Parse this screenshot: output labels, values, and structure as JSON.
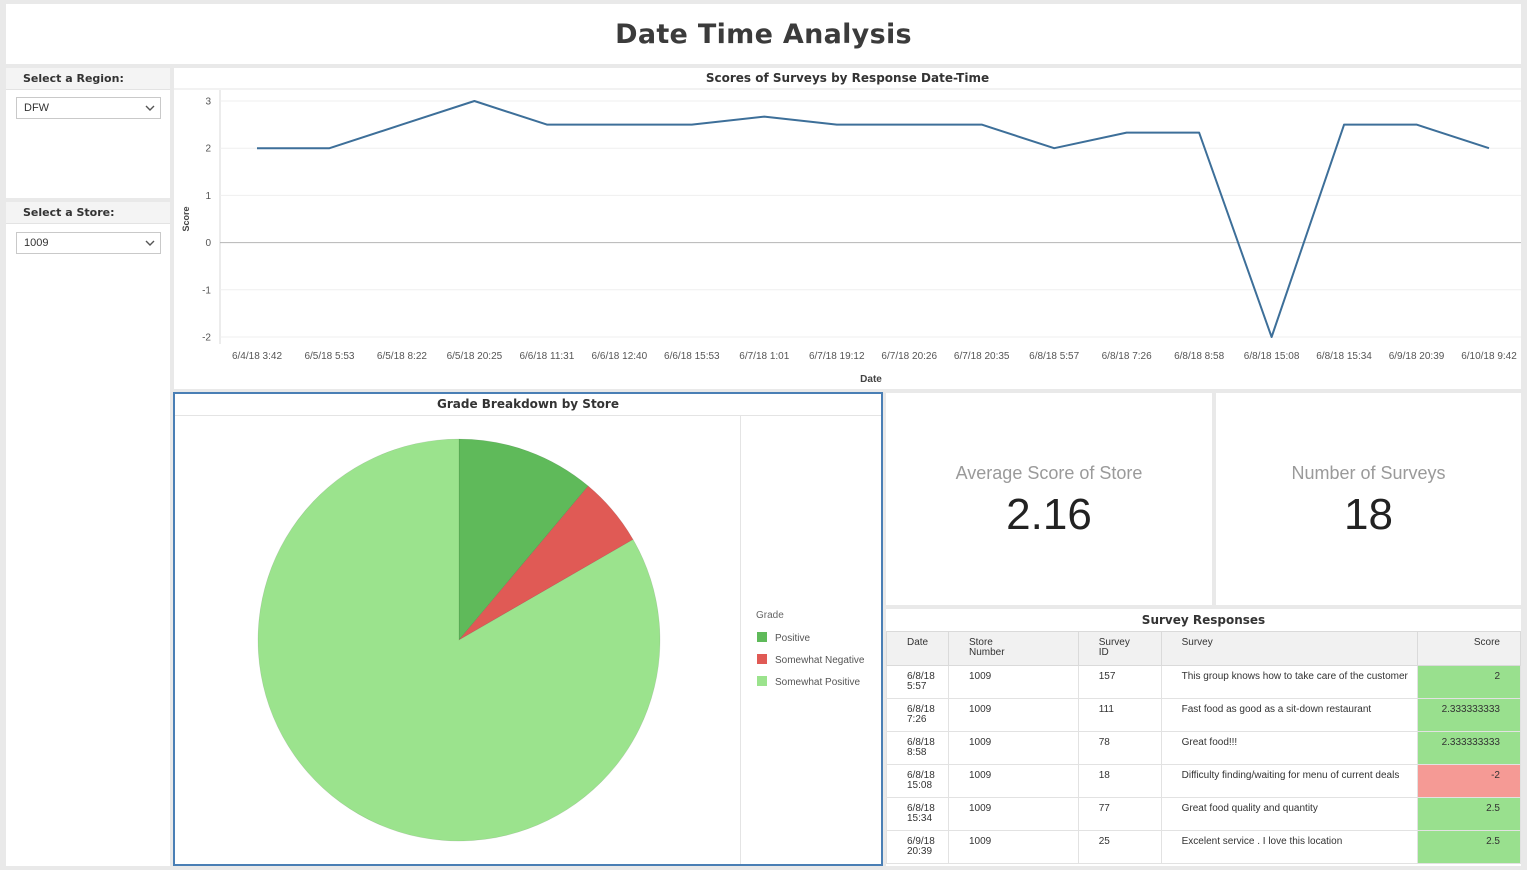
{
  "dashboard": {
    "title": "Date Time Analysis"
  },
  "filters": {
    "region": {
      "label": "Select a Region:",
      "value": "DFW"
    },
    "store": {
      "label": "Select a Store:",
      "value": "1009"
    }
  },
  "line_chart": {
    "title": "Scores of Surveys by Response Date-Time",
    "xlabel": "Date",
    "ylabel": "Score"
  },
  "pie_chart": {
    "title": "Grade Breakdown by Store"
  },
  "kpis": {
    "average": {
      "label": "Average Score of Store",
      "value": "2.16"
    },
    "count": {
      "label": "Number of Surveys",
      "value": "18"
    }
  },
  "table": {
    "title": "Survey Responses",
    "headers": [
      "Date",
      "Store\nNumber",
      "Survey\nID",
      "Survey",
      "Score"
    ],
    "rows": [
      {
        "date": "6/8/18\n5:57",
        "store": "1009",
        "id": "157",
        "survey": "This group knows how to take care of the customer",
        "score": "2"
      },
      {
        "date": "6/8/18\n7:26",
        "store": "1009",
        "id": "111",
        "survey": "Fast food as good as a sit-down restaurant",
        "score": "2.333333333"
      },
      {
        "date": "6/8/18\n8:58",
        "store": "1009",
        "id": "78",
        "survey": "Great food!!!",
        "score": "2.333333333"
      },
      {
        "date": "6/8/18\n15:08",
        "store": "1009",
        "id": "18",
        "survey": "Difficulty finding/waiting for menu of current deals",
        "score": "-2"
      },
      {
        "date": "6/8/18\n15:34",
        "store": "1009",
        "id": "77",
        "survey": "Great food quality and quantity",
        "score": "2.5"
      },
      {
        "date": "6/9/18\n20:39",
        "store": "1009",
        "id": "25",
        "survey": "Excelent service . I love this location",
        "score": "2.5"
      }
    ]
  },
  "colors": {
    "line": "#3d6f99",
    "positive": "#5fba5a",
    "somewhat_negative": "#e05a55",
    "somewhat_positive": "#9be38d",
    "score_positive_bg": "#99e08e",
    "score_negative_bg": "#f59a95"
  },
  "chart_data": [
    {
      "type": "line",
      "title": "Scores of Surveys by Response Date-Time",
      "xlabel": "Date",
      "ylabel": "Score",
      "ylim": [
        -2,
        3
      ],
      "yticks": [
        3,
        2,
        1,
        0,
        -1,
        -2
      ],
      "grid": true,
      "categories": [
        "6/4/18 3:42",
        "6/5/18 5:53",
        "6/5/18 8:22",
        "6/5/18 20:25",
        "6/6/18 11:31",
        "6/6/18 12:40",
        "6/6/18 15:53",
        "6/7/18 1:01",
        "6/7/18 19:12",
        "6/7/18 20:26",
        "6/7/18 20:35",
        "6/8/18 5:57",
        "6/8/18 7:26",
        "6/8/18 8:58",
        "6/8/18 15:08",
        "6/8/18 15:34",
        "6/9/18 20:39",
        "6/10/18 9:42"
      ],
      "values": [
        2,
        2,
        2.5,
        3,
        2.5,
        2.5,
        2.5,
        2.67,
        2.5,
        2.5,
        2.5,
        2,
        2.33,
        2.33,
        -2,
        2.5,
        2.5,
        2
      ]
    },
    {
      "type": "pie",
      "title": "Grade Breakdown by Store",
      "legend_title": "Grade",
      "legend_position": "right",
      "categories": [
        "Positive",
        "Somewhat Negative",
        "Somewhat Positive"
      ],
      "values": [
        2,
        1,
        15
      ]
    }
  ]
}
